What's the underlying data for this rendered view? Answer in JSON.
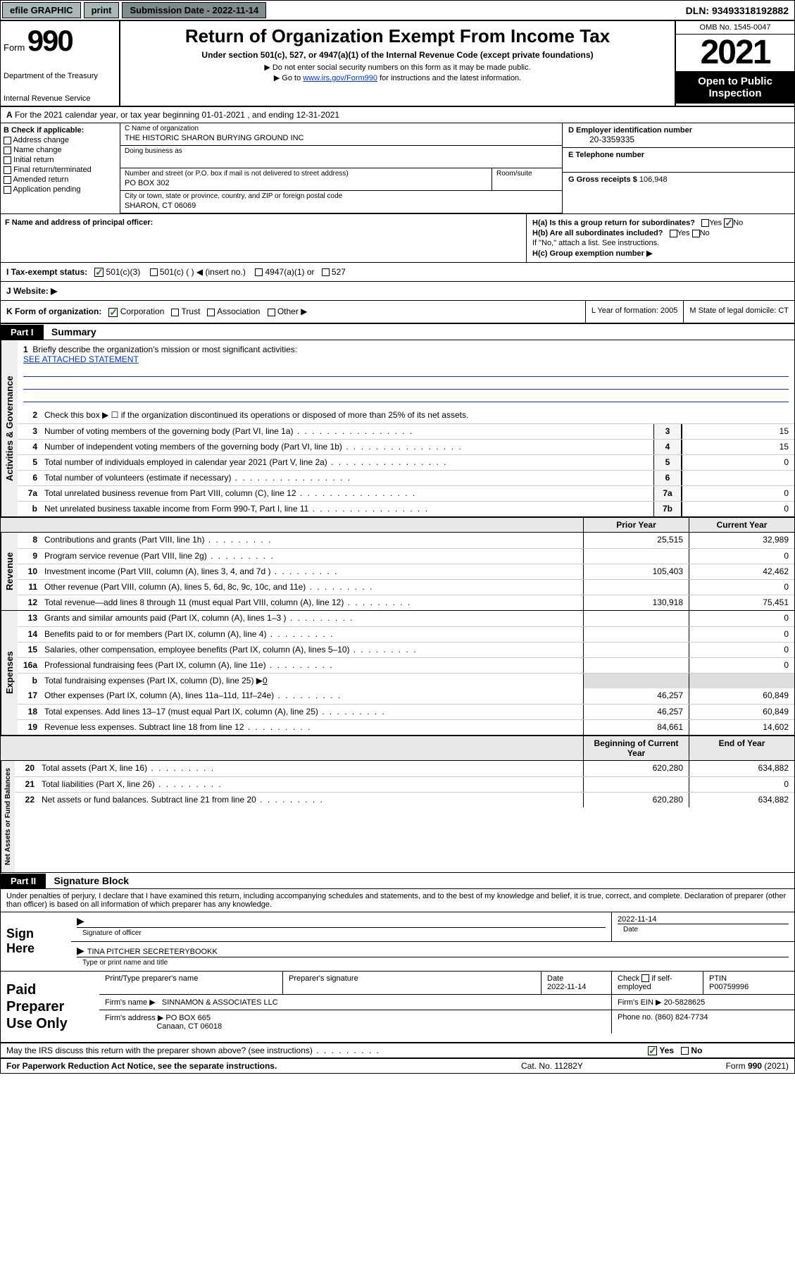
{
  "topbar": {
    "efile": "efile GRAPHIC",
    "print": "print",
    "sub_label": "Submission Date - 2022-11-14",
    "dln": "DLN: 93493318192882"
  },
  "header": {
    "form": "Form",
    "num": "990",
    "dept": "Department of the Treasury",
    "irs": "Internal Revenue Service",
    "title": "Return of Organization Exempt From Income Tax",
    "sub": "Under section 501(c), 527, or 4947(a)(1) of the Internal Revenue Code (except private foundations)",
    "note1": "▶ Do not enter social security numbers on this form as it may be made public.",
    "note2_pre": "▶ Go to ",
    "note2_link": "www.irs.gov/Form990",
    "note2_post": " for instructions and the latest information.",
    "omb": "OMB No. 1545-0047",
    "year": "2021",
    "open": "Open to Public Inspection"
  },
  "yearline": "For the 2021 calendar year, or tax year beginning 01-01-2021   , and ending 12-31-2021",
  "colB": {
    "hdr": "B Check if applicable:",
    "items": [
      "Address change",
      "Name change",
      "Initial return",
      "Final return/terminated",
      "Amended return",
      "Application pending"
    ]
  },
  "nameBlock": {
    "c_lbl": "C Name of organization",
    "c_val": "THE HISTORIC SHARON BURYING GROUND INC",
    "dba_lbl": "Doing business as",
    "street_lbl": "Number and street (or P.O. box if mail is not delivered to street address)",
    "street_val": "PO BOX 302",
    "room_lbl": "Room/suite",
    "city_lbl": "City or town, state or province, country, and ZIP or foreign postal code",
    "city_val": "SHARON, CT  06069"
  },
  "rightCol": {
    "d_lbl": "D Employer identification number",
    "d_val": "20-3359335",
    "e_lbl": "E Telephone number",
    "g_lbl": "G Gross receipts $",
    "g_val": "106,948"
  },
  "f_lbl": "F  Name and address of principal officer:",
  "h": {
    "a": "H(a)  Is this a group return for subordinates?",
    "b": "H(b)  Are all subordinates included?",
    "note": "If \"No,\" attach a list. See instructions.",
    "c": "H(c)  Group exemption number ▶",
    "yes": "Yes",
    "no": "No"
  },
  "i": {
    "lbl": "I   Tax-exempt status:",
    "opts": [
      "501(c)(3)",
      "501(c) (  ) ◀ (insert no.)",
      "4947(a)(1) or",
      "527"
    ]
  },
  "j": {
    "lbl": "J   Website: ▶"
  },
  "k": {
    "lbl": "K Form of organization:",
    "opts": [
      "Corporation",
      "Trust",
      "Association",
      "Other ▶"
    ],
    "l": "L Year of formation: 2005",
    "m": "M State of legal domicile: CT"
  },
  "part1": {
    "hdr": "Part I",
    "title": "Summary"
  },
  "briefly": {
    "num": "1",
    "txt": "Briefly describe the organization's mission or most significant activities:",
    "val": "SEE ATTACHED STATEMENT"
  },
  "activities": {
    "label": "Activities & Governance",
    "lines": [
      {
        "n": "2",
        "t": "Check this box ▶ ☐  if the organization discontinued its operations or disposed of more than 25% of its net assets."
      },
      {
        "n": "3",
        "t": "Number of voting members of the governing body (Part VI, line 1a)",
        "box": "3",
        "v": "15"
      },
      {
        "n": "4",
        "t": "Number of independent voting members of the governing body (Part VI, line 1b)",
        "box": "4",
        "v": "15"
      },
      {
        "n": "5",
        "t": "Total number of individuals employed in calendar year 2021 (Part V, line 2a)",
        "box": "5",
        "v": "0"
      },
      {
        "n": "6",
        "t": "Total number of volunteers (estimate if necessary)",
        "box": "6",
        "v": ""
      },
      {
        "n": "7a",
        "t": "Total unrelated business revenue from Part VIII, column (C), line 12",
        "box": "7a",
        "v": "0"
      },
      {
        "n": "b",
        "t": "Net unrelated business taxable income from Form 990-T, Part I, line 11",
        "box": "7b",
        "v": "0"
      }
    ]
  },
  "rev_hdr": {
    "prior": "Prior Year",
    "current": "Current Year"
  },
  "revenue": {
    "label": "Revenue",
    "lines": [
      {
        "n": "8",
        "t": "Contributions and grants (Part VIII, line 1h)",
        "p": "25,515",
        "c": "32,989"
      },
      {
        "n": "9",
        "t": "Program service revenue (Part VIII, line 2g)",
        "p": "",
        "c": "0"
      },
      {
        "n": "10",
        "t": "Investment income (Part VIII, column (A), lines 3, 4, and 7d )",
        "p": "105,403",
        "c": "42,462"
      },
      {
        "n": "11",
        "t": "Other revenue (Part VIII, column (A), lines 5, 6d, 8c, 9c, 10c, and 11e)",
        "p": "",
        "c": "0"
      },
      {
        "n": "12",
        "t": "Total revenue—add lines 8 through 11 (must equal Part VIII, column (A), line 12)",
        "p": "130,918",
        "c": "75,451"
      }
    ]
  },
  "expenses": {
    "label": "Expenses",
    "lines": [
      {
        "n": "13",
        "t": "Grants and similar amounts paid (Part IX, column (A), lines 1–3 )",
        "p": "",
        "c": "0"
      },
      {
        "n": "14",
        "t": "Benefits paid to or for members (Part IX, column (A), line 4)",
        "p": "",
        "c": "0"
      },
      {
        "n": "15",
        "t": "Salaries, other compensation, employee benefits (Part IX, column (A), lines 5–10)",
        "p": "",
        "c": "0"
      },
      {
        "n": "16a",
        "t": "Professional fundraising fees (Part IX, column (A), line 11e)",
        "p": "",
        "c": "0"
      }
    ],
    "b_line": {
      "n": "b",
      "t": "Total fundraising expenses (Part IX, column (D), line 25) ▶",
      "v": "0"
    },
    "lines2": [
      {
        "n": "17",
        "t": "Other expenses (Part IX, column (A), lines 11a–11d, 11f–24e)",
        "p": "46,257",
        "c": "60,849"
      },
      {
        "n": "18",
        "t": "Total expenses. Add lines 13–17 (must equal Part IX, column (A), line 25)",
        "p": "46,257",
        "c": "60,849"
      },
      {
        "n": "19",
        "t": "Revenue less expenses. Subtract line 18 from line 12",
        "p": "84,661",
        "c": "14,602"
      }
    ]
  },
  "net_hdr": {
    "begin": "Beginning of Current Year",
    "end": "End of Year"
  },
  "net": {
    "label": "Net Assets or Fund Balances",
    "lines": [
      {
        "n": "20",
        "t": "Total assets (Part X, line 16)",
        "p": "620,280",
        "c": "634,882"
      },
      {
        "n": "21",
        "t": "Total liabilities (Part X, line 26)",
        "p": "",
        "c": "0"
      },
      {
        "n": "22",
        "t": "Net assets or fund balances. Subtract line 21 from line 20",
        "p": "620,280",
        "c": "634,882"
      }
    ]
  },
  "part2": {
    "hdr": "Part II",
    "title": "Signature Block"
  },
  "sig_intro": "Under penalties of perjury, I declare that I have examined this return, including accompanying schedules and statements, and to the best of my knowledge and belief, it is true, correct, and complete. Declaration of preparer (other than officer) is based on all information of which preparer has any knowledge.",
  "sign": {
    "here": "Sign Here",
    "sig_lbl": "Signature of officer",
    "date": "2022-11-14",
    "date_lbl": "Date",
    "name": "TINA PITCHER  SECRETERYBOOKK",
    "name_lbl": "Type or print name and title"
  },
  "paid": {
    "lbl": "Paid Preparer Use Only",
    "h1": "Print/Type preparer's name",
    "h2": "Preparer's signature",
    "h3": "Date",
    "date": "2022-11-14",
    "h4_a": "Check",
    "h4_b": "if self-employed",
    "h5": "PTIN",
    "ptin": "P00759996",
    "firm_name_lbl": "Firm's name    ▶",
    "firm_name": "SINNAMON & ASSOCIATES LLC",
    "firm_ein_lbl": "Firm's EIN ▶",
    "firm_ein": "20-5828625",
    "firm_addr_lbl": "Firm's address ▶",
    "firm_addr1": "PO BOX 665",
    "firm_addr2": "Canaan, CT  06018",
    "phone_lbl": "Phone no.",
    "phone": "(860) 824-7734"
  },
  "discuss": {
    "txt": "May the IRS discuss this return with the preparer shown above? (see instructions)",
    "yes": "Yes",
    "no": "No"
  },
  "footer": {
    "left": "For Paperwork Reduction Act Notice, see the separate instructions.",
    "mid": "Cat. No. 11282Y",
    "right_a": "Form ",
    "right_b": "990",
    "right_c": " (2021)"
  }
}
